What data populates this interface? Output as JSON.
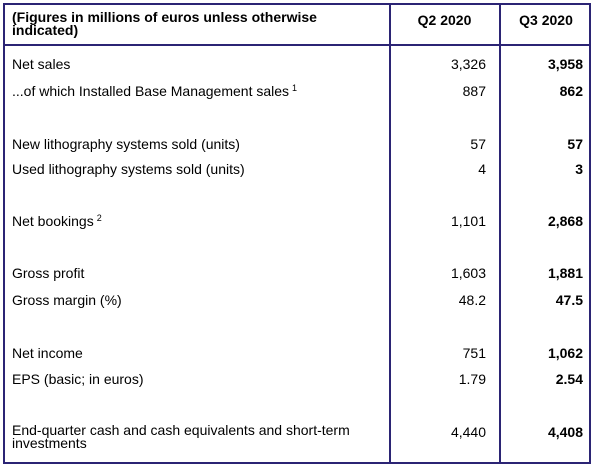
{
  "header": {
    "label": "(Figures in millions of euros unless otherwise indicated)",
    "col_q2": "Q2 2020",
    "col_q3": "Q3 2020"
  },
  "rows": [
    {
      "label": "Net sales",
      "sup": "",
      "q2": "3,326",
      "q3": "3,958"
    },
    {
      "label": "...of which Installed Base Management sales",
      "sup": "1",
      "q2": "887",
      "q3": "862"
    },
    {
      "label": "New lithography systems sold (units)",
      "sup": "",
      "q2": "57",
      "q3": "57"
    },
    {
      "label": "Used lithography systems sold (units)",
      "sup": "",
      "q2": "4",
      "q3": "3"
    },
    {
      "label": "Net bookings",
      "sup": "2",
      "q2": "1,101",
      "q3": "2,868"
    },
    {
      "label": "Gross profit",
      "sup": "",
      "q2": "1,603",
      "q3": "1,881"
    },
    {
      "label": "Gross margin (%)",
      "sup": "",
      "q2": "48.2",
      "q3": "47.5"
    },
    {
      "label": "Net income",
      "sup": "",
      "q2": "751",
      "q3": "1,062"
    },
    {
      "label": "EPS (basic; in euros)",
      "sup": "",
      "q2": "1.79",
      "q3": "2.54"
    },
    {
      "label": "End-quarter cash and cash equivalents and short-term investments",
      "sup": "",
      "q2": "4,440",
      "q3": "4,408"
    }
  ]
}
